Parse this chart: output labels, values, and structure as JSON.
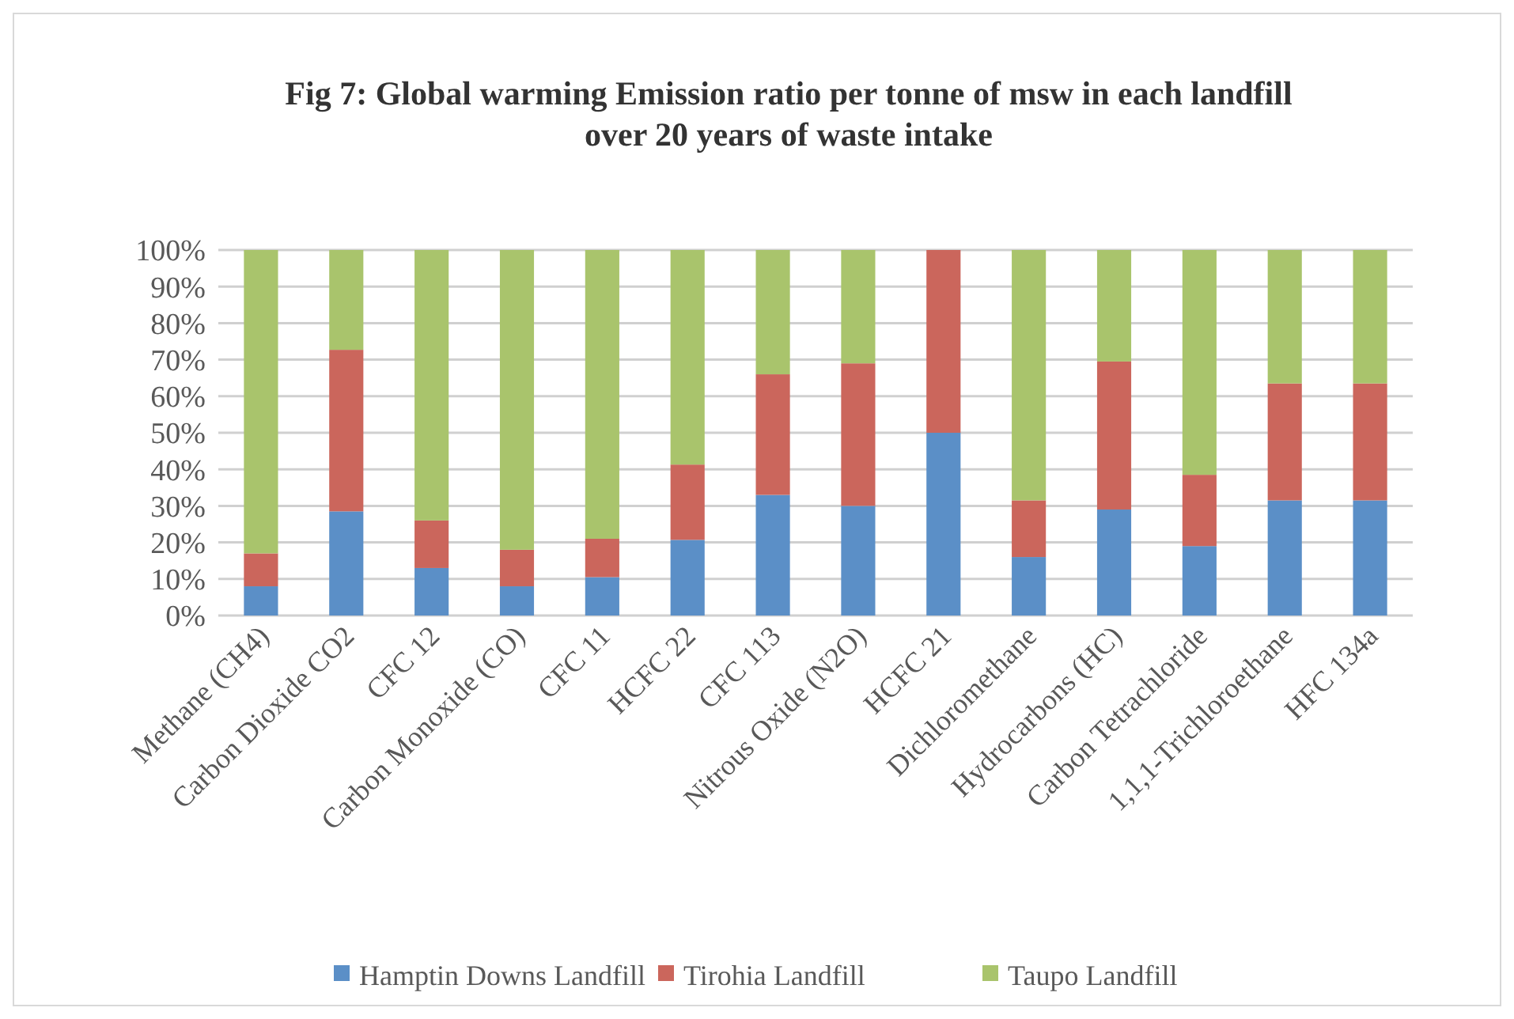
{
  "chart_data": {
    "type": "bar",
    "stacked": true,
    "title": "Fig 7: Global warming Emission ratio per tonne of msw in each landfill\nover 20 years of waste intake",
    "categories": [
      "Methane (CH4)",
      "Carbon Dioxide CO2",
      "CFC 12",
      "Carbon Monoxide (CO)",
      "CFC 11",
      "HCFC 22",
      "CFC 113",
      "Nitrous Oxide (N2O)",
      "HCFC 21",
      "Dichloromethane",
      "Hydrocarbons (HC)",
      "Carbon Tetrachloride",
      "1,1,1-Trichloroethane",
      "HFC 134a"
    ],
    "series": [
      {
        "name": "Hamptin Downs Landfill",
        "color": "#5b8fc7",
        "values": [
          8,
          28.5,
          13,
          8,
          10.5,
          20.7,
          33,
          30,
          50,
          16,
          29,
          19,
          31.5,
          31.5
        ]
      },
      {
        "name": "Tirohia Landfill",
        "color": "#cb665c",
        "values": [
          9,
          44.2,
          13,
          10,
          10.5,
          20.6,
          33,
          39,
          50,
          15.5,
          40.5,
          19.5,
          32,
          32
        ]
      },
      {
        "name": "Taupo Landfill",
        "color": "#a9c46c",
        "values": [
          83,
          27.3,
          74,
          82,
          79,
          58.7,
          34,
          31,
          0,
          68.5,
          30.5,
          61.5,
          36.5,
          36.5
        ]
      }
    ],
    "ylim": [
      0,
      100
    ],
    "yticks": [
      {
        "value": 0,
        "label": "0%"
      },
      {
        "value": 10,
        "label": "10%"
      },
      {
        "value": 20,
        "label": "20%"
      },
      {
        "value": 30,
        "label": "30%"
      },
      {
        "value": 40,
        "label": "40%"
      },
      {
        "value": 50,
        "label": "50%"
      },
      {
        "value": 60,
        "label": "60%"
      },
      {
        "value": 70,
        "label": "70%"
      },
      {
        "value": 80,
        "label": "80%"
      },
      {
        "value": 90,
        "label": "90%"
      },
      {
        "value": 100,
        "label": "100%"
      }
    ],
    "grid": "y",
    "legend": "bottom"
  }
}
